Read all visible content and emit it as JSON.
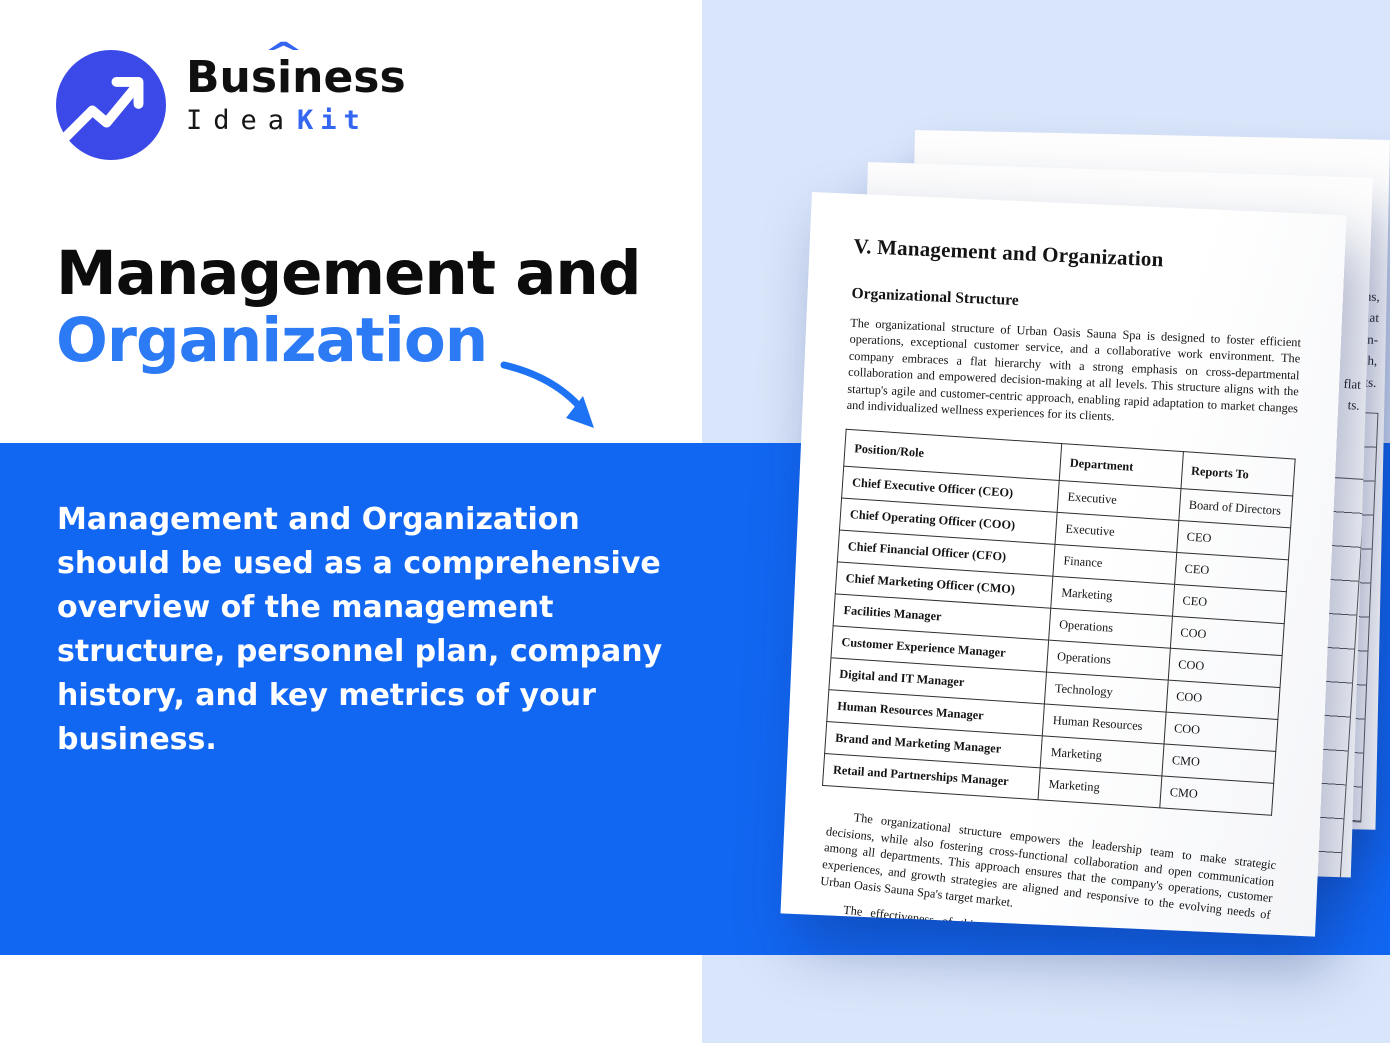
{
  "brand": {
    "word": "Business",
    "caret": "^",
    "sub_left": "Idea",
    "sub_right": "Kit"
  },
  "hero": {
    "line1": "Management and",
    "line2": "Organization"
  },
  "description": "Management and Organization should be used as a comprehensive overview of the management structure, personnel plan, company history, and key metrics of your business.",
  "document": {
    "title": "V. Management and Organization",
    "section_heading": "Organizational Structure",
    "intro": "The organizational structure of Urban Oasis Sauna Spa is designed to foster efficient operations, exceptional customer service, and a collaborative work environment. The company embraces a flat hierarchy with a strong emphasis on cross-departmental collaboration and empowered decision-making at all levels. This structure aligns with the startup's agile and customer-centric approach, enabling rapid adaptation to market changes and individualized wellness experiences for its clients.",
    "table": {
      "headers": [
        "Position/Role",
        "Department",
        "Reports To"
      ],
      "rows": [
        [
          "Chief Executive Officer (CEO)",
          "Executive",
          "Board of Directors"
        ],
        [
          "Chief Operating Officer (COO)",
          "Executive",
          "CEO"
        ],
        [
          "Chief Financial Officer (CFO)",
          "Finance",
          "CEO"
        ],
        [
          "Chief Marketing Officer (CMO)",
          "Marketing",
          "CEO"
        ],
        [
          "Facilities Manager",
          "Operations",
          "COO"
        ],
        [
          "Customer Experience Manager",
          "Operations",
          "COO"
        ],
        [
          "Digital and IT Manager",
          "Technology",
          "COO"
        ],
        [
          "Human Resources Manager",
          "Human Resources",
          "COO"
        ],
        [
          "Brand and Marketing Manager",
          "Marketing",
          "CMO"
        ],
        [
          "Retail and Partnerships Manager",
          "Marketing",
          "CMO"
        ]
      ]
    },
    "closing_paragraphs": [
      "The organizational structure empowers the leadership team to make strategic decisions, while also fostering cross-functional collaboration and open communication among all departments. This approach ensures that the company's operations, customer experiences, and growth strategies are aligned and responsive to the evolving needs of Urban Oasis Sauna Spa's target market.",
      "The effectiveness of this organizational structure is further reinforced by the company's commitment to continuous employee development, data-driven decision-making, and a strong emphasis on"
    ],
    "edge_fragments_back": [
      "ns,",
      "a flat",
      "on-",
      "ch,",
      "lients."
    ],
    "edge_fragments_mid": [
      "flat",
      "ts."
    ],
    "edge_cell_snippet": "rs"
  },
  "colors": {
    "band_blue": "#1267f2",
    "panel_light_blue": "#d9e5fa",
    "accent_blue": "#2d7af5",
    "logo_blue": "#3a49e8",
    "kit_blue": "#3566f2",
    "arrow_blue": "#1e73f5",
    "text_dark": "#0c0c0c",
    "paper_white": "#fdfdfd"
  }
}
